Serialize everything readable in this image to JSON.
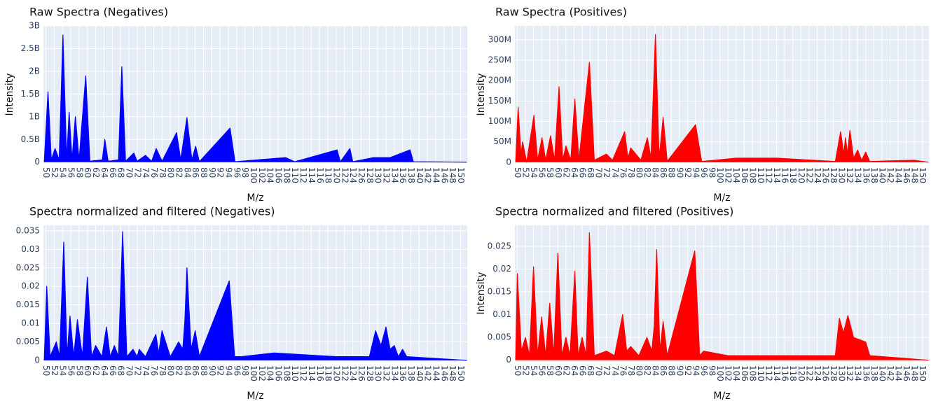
{
  "chart_data": [
    {
      "type": "area",
      "title": "Raw Spectra (Negatives)",
      "x_label": "M/z",
      "y_label": "Intensity",
      "color": "#0000ff",
      "x": [
        49.6,
        50.5,
        51.3,
        52.2,
        53.2,
        54.1,
        55,
        55.6,
        56.3,
        57.1,
        58,
        59.6,
        60.6,
        63.6,
        64.2,
        65,
        67.5,
        68.3,
        69.2,
        71.2,
        72,
        74,
        75.5,
        76.6,
        78,
        81.5,
        82.5,
        84,
        85.2,
        86.1,
        87,
        94.4,
        95.6,
        107.8,
        110,
        120.2,
        121,
        123.3,
        124,
        129,
        133,
        137.8,
        138.6,
        151.5
      ],
      "values": [
        0,
        1550000000,
        50000000,
        300000000,
        50000000,
        2800000000,
        50000000,
        1100000000,
        50000000,
        1000000000,
        50000000,
        1900000000,
        20000000,
        50000000,
        500000000,
        20000000,
        50000000,
        2100000000,
        20000000,
        200000000,
        20000000,
        150000000,
        20000000,
        300000000,
        20000000,
        650000000,
        50000000,
        980000000,
        50000000,
        350000000,
        10000000,
        750000000,
        10000000,
        100000000,
        10000000,
        270000000,
        10000000,
        300000000,
        10000000,
        100000000,
        100000000,
        270000000,
        10000000,
        0
      ],
      "xlim": [
        49.4,
        151.6
      ],
      "ylim": [
        -20000000,
        3000000000
      ],
      "xticks": [
        50,
        52,
        54,
        56,
        58,
        60,
        62,
        64,
        66,
        68,
        70,
        72,
        74,
        76,
        78,
        80,
        82,
        84,
        86,
        88,
        90,
        92,
        94,
        96,
        98,
        100,
        102,
        104,
        106,
        108,
        110,
        112,
        114,
        116,
        118,
        120,
        122,
        124,
        126,
        128,
        130,
        132,
        134,
        136,
        138,
        140,
        142,
        144,
        146,
        148,
        150
      ],
      "yticks": [
        0,
        {
          "value": 500000000,
          "label": "0.5B"
        },
        {
          "value": 1000000000,
          "label": "1B"
        },
        {
          "value": 1500000000,
          "label": "1.5B"
        },
        {
          "value": 2000000000,
          "label": "2B"
        },
        {
          "value": 2500000000,
          "label": "2.5B"
        },
        {
          "value": 3000000000,
          "label": "3B"
        }
      ],
      "grid": true
    },
    {
      "type": "area",
      "title": "Raw Spectra (Positives)",
      "x_label": "M/z",
      "y_label": "Intensity",
      "color": "#ff0000",
      "x": [
        49.6,
        50.2,
        50.9,
        51.3,
        52.3,
        54.1,
        55,
        56.1,
        57,
        58.2,
        59.2,
        60.3,
        61.2,
        62,
        63.2,
        64.2,
        65.2,
        67.8,
        69,
        72,
        73.5,
        76.5,
        77.3,
        78,
        80.5,
        82.1,
        83,
        84.1,
        85,
        86,
        87,
        94,
        95.5,
        104,
        110,
        114,
        128.5,
        129.8,
        130.6,
        131,
        131.5,
        132.1,
        133,
        134,
        135,
        136,
        137,
        148,
        151.5
      ],
      "values": [
        0,
        135000000,
        20000000,
        50000000,
        0,
        115000000,
        5000000,
        60000000,
        5000000,
        65000000,
        5000000,
        185000000,
        5000000,
        40000000,
        5000000,
        155000000,
        5000000,
        245000000,
        5000000,
        20000000,
        5000000,
        75000000,
        10000000,
        35000000,
        5000000,
        60000000,
        10000000,
        313000000,
        10000000,
        110000000,
        2000000,
        92000000,
        2000000,
        10000000,
        10000000,
        10000000,
        2000000,
        75000000,
        20000000,
        60000000,
        20000000,
        78000000,
        10000000,
        30000000,
        5000000,
        25000000,
        2000000,
        5000000,
        0
      ],
      "xlim": [
        49.4,
        151.6
      ],
      "ylim": [
        -2000000,
        334000000
      ],
      "xticks": [
        50,
        52,
        54,
        56,
        58,
        60,
        62,
        64,
        66,
        68,
        70,
        72,
        74,
        76,
        78,
        80,
        82,
        84,
        86,
        88,
        90,
        92,
        94,
        96,
        98,
        100,
        102,
        104,
        106,
        108,
        110,
        112,
        114,
        116,
        118,
        120,
        122,
        124,
        126,
        128,
        130,
        132,
        134,
        136,
        138,
        140,
        142,
        144,
        146,
        148,
        150
      ],
      "yticks": [
        0,
        {
          "value": 50000000,
          "label": "50M"
        },
        {
          "value": 100000000,
          "label": "100M"
        },
        {
          "value": 150000000,
          "label": "150M"
        },
        {
          "value": 200000000,
          "label": "200M"
        },
        {
          "value": 250000000,
          "label": "250M"
        },
        {
          "value": 300000000,
          "label": "300M"
        }
      ],
      "grid": true
    },
    {
      "type": "area",
      "title": "Spectra normalized and filtered (Negatives)",
      "x_label": "M/z",
      "color": "#0000ff",
      "x": [
        49.6,
        50.2,
        51,
        52.5,
        53.3,
        54.3,
        55.1,
        55.8,
        56.7,
        57.6,
        58.8,
        60,
        61,
        62,
        63.5,
        64.6,
        65.5,
        66.5,
        67.5,
        68.5,
        69.5,
        71,
        72,
        72.5,
        74,
        76.5,
        77.2,
        78,
        80,
        82,
        83,
        83.5,
        84,
        85,
        86,
        87,
        94.2,
        95.5,
        97,
        105,
        120,
        128,
        129.5,
        130.8,
        132,
        133,
        134,
        135,
        136,
        137,
        151.5
      ],
      "values": [
        0,
        0.02,
        0.001,
        0.005,
        0.001,
        0.032,
        0.001,
        0.012,
        0.001,
        0.011,
        0.001,
        0.0225,
        0.001,
        0.004,
        0.001,
        0.009,
        0.001,
        0.004,
        0.001,
        0.0348,
        0.001,
        0.003,
        0.001,
        0.003,
        0.001,
        0.007,
        0.002,
        0.008,
        0.001,
        0.005,
        0.003,
        0.0105,
        0.025,
        0.003,
        0.008,
        0.001,
        0.0215,
        0.001,
        0.001,
        0.002,
        0.001,
        0.001,
        0.008,
        0.004,
        0.009,
        0.003,
        0.004,
        0.001,
        0.003,
        0.001,
        0
      ],
      "xlim": [
        49.4,
        151.6
      ],
      "ylim": [
        -0.0002,
        0.0365
      ],
      "xticks": [
        50,
        52,
        54,
        56,
        58,
        60,
        62,
        64,
        66,
        68,
        70,
        72,
        74,
        76,
        78,
        80,
        82,
        84,
        86,
        88,
        90,
        92,
        94,
        96,
        98,
        100,
        102,
        104,
        106,
        108,
        110,
        112,
        114,
        116,
        118,
        120,
        122,
        124,
        126,
        128,
        130,
        132,
        134,
        136,
        138,
        140,
        142,
        144,
        146,
        148,
        150
      ],
      "yticks": [
        0,
        0.005,
        0.01,
        0.015,
        0.02,
        0.025,
        0.03,
        0.035
      ],
      "grid": true
    },
    {
      "type": "area",
      "title": "Spectra normalized and filtered (Positives)",
      "x_label": "M/z",
      "y_label": "Intensity",
      "color": "#ff0000",
      "x": [
        49.6,
        50,
        51,
        52,
        53,
        54,
        55,
        56,
        57,
        58,
        59,
        60,
        61,
        62,
        63,
        64.2,
        65,
        66,
        67,
        67.8,
        69,
        72,
        74,
        76,
        77,
        78,
        80,
        82,
        83.2,
        83.8,
        84.4,
        85.2,
        86,
        87,
        93.8,
        95,
        96,
        102,
        115,
        128.5,
        129.5,
        130.5,
        131.6,
        133,
        136,
        137,
        151.5
      ],
      "values": [
        0,
        0.019,
        0.002,
        0.005,
        0.001,
        0.0205,
        0.001,
        0.0095,
        0.001,
        0.0125,
        0.001,
        0.0235,
        0.001,
        0.005,
        0.001,
        0.0195,
        0.001,
        0.005,
        0.001,
        0.028,
        0.001,
        0.002,
        0.001,
        0.01,
        0.002,
        0.003,
        0.001,
        0.005,
        0.002,
        0.0075,
        0.0243,
        0.002,
        0.0085,
        0.001,
        0.024,
        0.001,
        0.002,
        0.001,
        0.001,
        0.001,
        0.0092,
        0.006,
        0.0098,
        0.005,
        0.004,
        0.001,
        0
      ],
      "xlim": [
        49.4,
        151.6
      ],
      "ylim": [
        -0.0002,
        0.0296
      ],
      "xticks": [
        50,
        52,
        54,
        56,
        58,
        60,
        62,
        64,
        66,
        68,
        70,
        72,
        74,
        76,
        78,
        80,
        82,
        84,
        86,
        88,
        90,
        92,
        94,
        96,
        98,
        100,
        102,
        104,
        106,
        108,
        110,
        112,
        114,
        116,
        118,
        120,
        122,
        124,
        126,
        128,
        130,
        132,
        134,
        136,
        138,
        140,
        142,
        144,
        146,
        148,
        150
      ],
      "yticks": [
        0,
        0.005,
        0.01,
        0.015,
        0.02,
        0.025
      ],
      "grid": true
    }
  ]
}
